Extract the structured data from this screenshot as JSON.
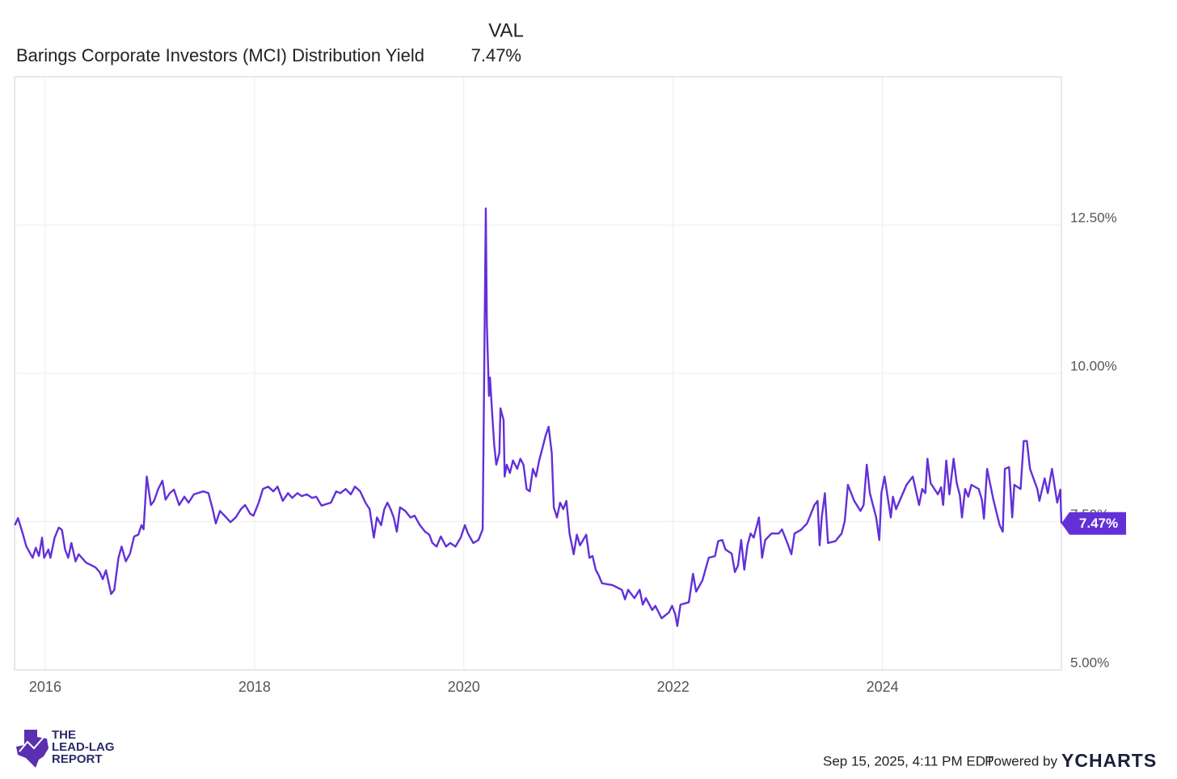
{
  "chart_data": {
    "type": "line",
    "column_header": "VAL",
    "timestamp": "Sep 15, 2025, 4:11 PM EDT",
    "powered_by": "Powered by",
    "brand": "YCHARTS",
    "logo_text": [
      "THE",
      "LEAD-LAG",
      "REPORT"
    ],
    "xlim": [
      2015.707,
      2025.71
    ],
    "xticks": [
      2016,
      2018,
      2020,
      2022,
      2024
    ],
    "ylim": [
      5,
      15
    ],
    "yticks": [
      {
        "value": 5,
        "label": "5.00%"
      },
      {
        "value": 7.5,
        "label": "7.50%"
      },
      {
        "value": 10,
        "label": "10.00%"
      },
      {
        "value": 12.5,
        "label": "12.50%"
      }
    ],
    "grid": true,
    "x": [
      2015.71,
      2015.74,
      2015.78,
      2015.82,
      2015.88,
      2015.91,
      2015.94,
      2015.97,
      2015.99,
      2016.03,
      2016.05,
      2016.09,
      2016.13,
      2016.16,
      2016.19,
      2016.22,
      2016.25,
      2016.29,
      2016.32,
      2016.39,
      2016.48,
      2016.52,
      2016.55,
      2016.58,
      2016.63,
      2016.66,
      2016.7,
      2016.73,
      2016.77,
      2016.81,
      2016.85,
      2016.89,
      2016.92,
      2016.94,
      2016.97,
      2017.01,
      2017.04,
      2017.08,
      2017.12,
      2017.15,
      2017.19,
      2017.23,
      2017.28,
      2017.33,
      2017.37,
      2017.42,
      2017.51,
      2017.56,
      2017.6,
      2017.63,
      2017.67,
      2017.73,
      2017.77,
      2017.82,
      2017.87,
      2017.91,
      2017.96,
      2017.99,
      2018.04,
      2018.08,
      2018.13,
      2018.18,
      2018.22,
      2018.27,
      2018.32,
      2018.36,
      2018.41,
      2018.45,
      2018.5,
      2018.55,
      2018.59,
      2018.64,
      2018.73,
      2018.78,
      2018.82,
      2018.87,
      2018.92,
      2018.96,
      2019.01,
      2019.06,
      2019.1,
      2019.14,
      2019.17,
      2019.21,
      2019.24,
      2019.27,
      2019.3,
      2019.33,
      2019.36,
      2019.39,
      2019.44,
      2019.49,
      2019.53,
      2019.58,
      2019.63,
      2019.67,
      2019.7,
      2019.74,
      2019.78,
      2019.83,
      2019.87,
      2019.92,
      2019.97,
      2020.01,
      2020.04,
      2020.09,
      2020.14,
      2020.18,
      2020.21,
      2020.22,
      2020.24,
      2020.25,
      2020.27,
      2020.29,
      2020.31,
      2020.34,
      2020.35,
      2020.38,
      2020.39,
      2020.41,
      2020.44,
      2020.47,
      2020.51,
      2020.54,
      2020.57,
      2020.6,
      2020.63,
      2020.66,
      2020.69,
      2020.72,
      2020.75,
      2020.78,
      2020.81,
      2020.84,
      2020.86,
      2020.89,
      2020.92,
      2020.95,
      2020.98,
      2021.01,
      2021.05,
      2021.08,
      2021.11,
      2021.17,
      2021.2,
      2021.23,
      2021.26,
      2021.29,
      2021.32,
      2021.42,
      2021.51,
      2021.54,
      2021.57,
      2021.63,
      2021.68,
      2021.71,
      2021.74,
      2021.8,
      2021.83,
      2021.89,
      2021.96,
      2021.99,
      2022.02,
      2022.04,
      2022.07,
      2022.15,
      2022.19,
      2022.22,
      2022.28,
      2022.34,
      2022.4,
      2022.43,
      2022.47,
      2022.5,
      2022.56,
      2022.59,
      2022.62,
      2022.65,
      2022.68,
      2022.71,
      2022.74,
      2022.77,
      2022.82,
      2022.85,
      2022.88,
      2022.94,
      2023.01,
      2023.04,
      2023.1,
      2023.13,
      2023.16,
      2023.22,
      2023.28,
      2023.35,
      2023.38,
      2023.4,
      2023.42,
      2023.45,
      2023.48,
      2023.55,
      2023.61,
      2023.64,
      2023.67,
      2023.73,
      2023.79,
      2023.82,
      2023.85,
      2023.88,
      2023.94,
      2023.97,
      2023.99,
      2024.02,
      2024.08,
      2024.1,
      2024.13,
      2024.23,
      2024.29,
      2024.35,
      2024.38,
      2024.41,
      2024.43,
      2024.46,
      2024.53,
      2024.56,
      2024.58,
      2024.61,
      2024.64,
      2024.68,
      2024.71,
      2024.74,
      2024.76,
      2024.79,
      2024.82,
      2024.85,
      2024.92,
      2024.95,
      2024.97,
      2025.0,
      2025.06,
      2025.12,
      2025.15,
      2025.17,
      2025.21,
      2025.24,
      2025.26,
      2025.32,
      2025.35,
      2025.38,
      2025.41,
      2025.48,
      2025.5,
      2025.55,
      2025.58,
      2025.62,
      2025.67,
      2025.7,
      2025.71
    ],
    "series": [
      {
        "name": "Barings Corporate Investors (MCI) Distribution Yield",
        "color": "#6330d8",
        "last_label": "7.47%",
        "values": [
          7.44,
          7.56,
          7.33,
          7.08,
          6.89,
          7.06,
          6.92,
          7.23,
          6.89,
          7.03,
          6.89,
          7.23,
          7.4,
          7.36,
          7.03,
          6.89,
          7.14,
          6.83,
          6.95,
          6.81,
          6.73,
          6.65,
          6.53,
          6.68,
          6.28,
          6.35,
          6.89,
          7.08,
          6.83,
          6.96,
          7.25,
          7.28,
          7.44,
          7.37,
          8.26,
          7.78,
          7.85,
          8.05,
          8.19,
          7.87,
          7.98,
          8.04,
          7.78,
          7.92,
          7.82,
          7.96,
          8.01,
          7.98,
          7.71,
          7.47,
          7.68,
          7.57,
          7.49,
          7.57,
          7.71,
          7.78,
          7.63,
          7.6,
          7.82,
          8.05,
          8.09,
          8.01,
          8.09,
          7.85,
          7.98,
          7.9,
          7.98,
          7.93,
          7.96,
          7.9,
          7.92,
          7.77,
          7.82,
          8.01,
          7.98,
          8.05,
          7.96,
          8.09,
          8.01,
          7.82,
          7.71,
          7.23,
          7.57,
          7.44,
          7.71,
          7.82,
          7.71,
          7.57,
          7.33,
          7.74,
          7.68,
          7.57,
          7.6,
          7.44,
          7.33,
          7.28,
          7.14,
          7.08,
          7.25,
          7.08,
          7.14,
          7.08,
          7.23,
          7.44,
          7.3,
          7.14,
          7.19,
          7.37,
          12.78,
          10.84,
          9.62,
          9.93,
          9.35,
          8.8,
          8.46,
          8.66,
          9.41,
          9.21,
          8.26,
          8.46,
          8.32,
          8.53,
          8.39,
          8.56,
          8.46,
          8.05,
          8.01,
          8.39,
          8.26,
          8.53,
          8.73,
          8.94,
          9.1,
          8.66,
          7.74,
          7.57,
          7.82,
          7.71,
          7.85,
          7.3,
          6.95,
          7.28,
          7.1,
          7.28,
          6.89,
          6.92,
          6.69,
          6.59,
          6.46,
          6.43,
          6.35,
          6.19,
          6.35,
          6.21,
          6.35,
          6.1,
          6.21,
          6.01,
          6.08,
          5.87,
          5.97,
          6.08,
          5.94,
          5.74,
          6.1,
          6.14,
          6.62,
          6.32,
          6.51,
          6.89,
          6.92,
          7.17,
          7.19,
          7.03,
          6.96,
          6.65,
          6.76,
          7.19,
          6.69,
          7.1,
          7.3,
          7.23,
          7.57,
          6.89,
          7.19,
          7.3,
          7.3,
          7.37,
          7.1,
          6.95,
          7.3,
          7.36,
          7.47,
          7.78,
          7.85,
          7.1,
          7.57,
          7.98,
          7.14,
          7.17,
          7.3,
          7.51,
          8.12,
          7.85,
          7.68,
          7.78,
          8.46,
          7.98,
          7.57,
          7.19,
          7.98,
          8.26,
          7.57,
          7.92,
          7.71,
          8.12,
          8.26,
          7.78,
          8.05,
          7.98,
          8.56,
          8.15,
          7.96,
          8.08,
          7.78,
          8.53,
          7.96,
          8.56,
          8.15,
          7.94,
          7.57,
          8.05,
          7.92,
          8.12,
          8.05,
          7.87,
          7.55,
          8.39,
          7.87,
          7.44,
          7.33,
          8.39,
          8.42,
          7.57,
          8.12,
          8.05,
          8.86,
          8.86,
          8.39,
          8.05,
          7.85,
          8.23,
          7.98,
          8.39,
          7.82,
          8.04,
          7.47
        ]
      }
    ]
  }
}
